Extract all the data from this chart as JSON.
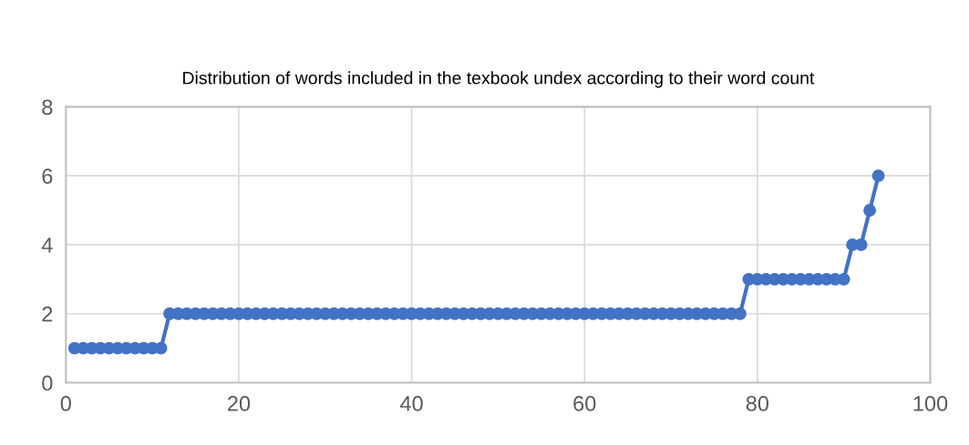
{
  "chart_data": {
    "type": "line",
    "title": "Distribution of words included in the texbook undex according to their word count",
    "x": [
      1,
      2,
      3,
      4,
      5,
      6,
      7,
      8,
      9,
      10,
      11,
      12,
      13,
      14,
      15,
      16,
      17,
      18,
      19,
      20,
      21,
      22,
      23,
      24,
      25,
      26,
      27,
      28,
      29,
      30,
      31,
      32,
      33,
      34,
      35,
      36,
      37,
      38,
      39,
      40,
      41,
      42,
      43,
      44,
      45,
      46,
      47,
      48,
      49,
      50,
      51,
      52,
      53,
      54,
      55,
      56,
      57,
      58,
      59,
      60,
      61,
      62,
      63,
      64,
      65,
      66,
      67,
      68,
      69,
      70,
      71,
      72,
      73,
      74,
      75,
      76,
      77,
      78,
      79,
      80,
      81,
      82,
      83,
      84,
      85,
      86,
      87,
      88,
      89,
      90,
      91,
      92,
      93,
      94
    ],
    "series": [
      {
        "color": "#4472c4",
        "values": [
          1,
          1,
          1,
          1,
          1,
          1,
          1,
          1,
          1,
          1,
          1,
          2,
          2,
          2,
          2,
          2,
          2,
          2,
          2,
          2,
          2,
          2,
          2,
          2,
          2,
          2,
          2,
          2,
          2,
          2,
          2,
          2,
          2,
          2,
          2,
          2,
          2,
          2,
          2,
          2,
          2,
          2,
          2,
          2,
          2,
          2,
          2,
          2,
          2,
          2,
          2,
          2,
          2,
          2,
          2,
          2,
          2,
          2,
          2,
          2,
          2,
          2,
          2,
          2,
          2,
          2,
          2,
          2,
          2,
          2,
          2,
          2,
          2,
          2,
          2,
          2,
          2,
          2,
          3,
          3,
          3,
          3,
          3,
          3,
          3,
          3,
          3,
          3,
          3,
          3,
          4,
          4,
          5,
          6
        ]
      }
    ],
    "xlim": [
      0,
      100
    ],
    "xticks": [
      0,
      20,
      40,
      60,
      80,
      100
    ],
    "ylim": [
      0,
      8
    ],
    "yticks": [
      0,
      2,
      4,
      6,
      8
    ],
    "grid": true,
    "marker": "circle",
    "line_style": "solid",
    "legend": false
  }
}
